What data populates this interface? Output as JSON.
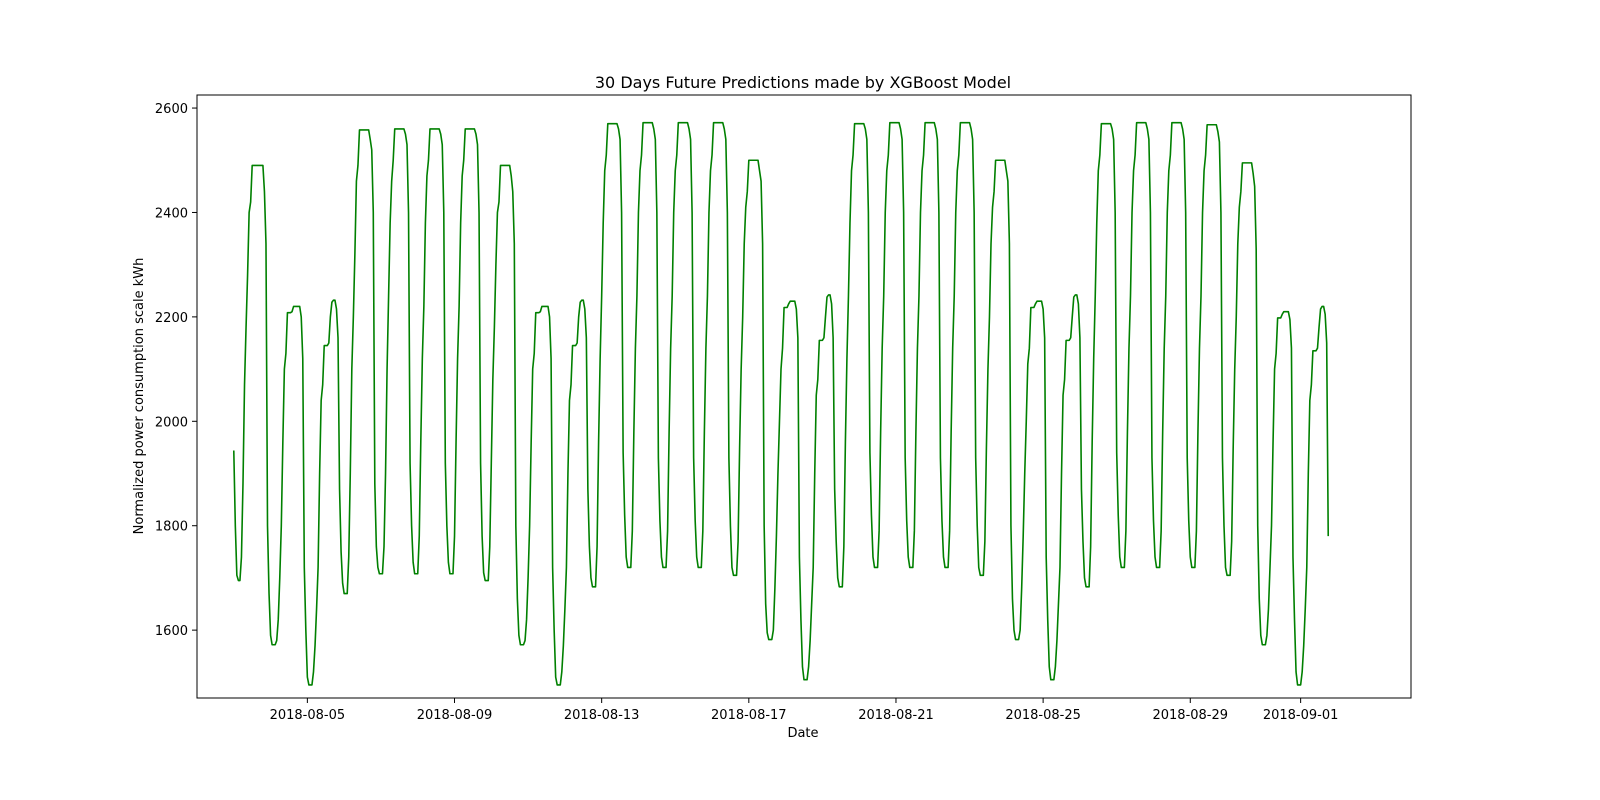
{
  "chart_data": {
    "type": "line",
    "title": "30 Days Future Predictions made by XGBoost Model",
    "xlabel": "Date",
    "ylabel": "Normalized power consumption scale kWh",
    "xlim": [
      "2018-08-02T00:00",
      "2018-09-04T00:00"
    ],
    "ylim": [
      1470,
      2625
    ],
    "x_ticks": [
      "2018-08-05",
      "2018-08-09",
      "2018-08-13",
      "2018-08-17",
      "2018-08-21",
      "2018-08-25",
      "2018-08-29",
      "2018-09-01"
    ],
    "y_ticks": [
      1600,
      1800,
      2000,
      2200,
      2400,
      2600
    ],
    "grid": false,
    "line_color": "#008000",
    "series": [
      {
        "start": "2018-08-03T00:00",
        "step_hours": 1,
        "values": [
          1944,
          1800,
          1705,
          1695,
          1695,
          1740,
          1880,
          2070,
          2180,
          2280,
          2400,
          2420,
          2490,
          2490,
          2490,
          2490,
          2490,
          2490,
          2490,
          2490,
          2440,
          2340,
          1800,
          1670,
          1590,
          1572,
          1572,
          1572,
          1580,
          1620,
          1700,
          1800,
          1960,
          2100,
          2130,
          2208,
          2208,
          2208,
          2210,
          2220,
          2220,
          2220,
          2220,
          2220,
          2200,
          2120,
          1720,
          1600,
          1510,
          1495,
          1495,
          1495,
          1520,
          1570,
          1640,
          1720,
          1900,
          2040,
          2070,
          2145,
          2145,
          2145,
          2150,
          2200,
          2228,
          2232,
          2232,
          2215,
          2160,
          1870,
          1750,
          1690,
          1670,
          1670,
          1670,
          1740,
          1900,
          2100,
          2200,
          2320,
          2460,
          2490,
          2558,
          2558,
          2558,
          2558,
          2558,
          2558,
          2558,
          2540,
          2520,
          2400,
          1880,
          1760,
          1720,
          1708,
          1708,
          1708,
          1760,
          1900,
          2100,
          2240,
          2380,
          2460,
          2500,
          2560,
          2560,
          2560,
          2560,
          2560,
          2560,
          2560,
          2550,
          2530,
          2400,
          1920,
          1800,
          1730,
          1708,
          1708,
          1708,
          1780,
          1960,
          2120,
          2220,
          2380,
          2470,
          2500,
          2560,
          2560,
          2560,
          2560,
          2560,
          2560,
          2560,
          2550,
          2530,
          2400,
          1920,
          1800,
          1730,
          1708,
          1708,
          1708,
          1780,
          1960,
          2120,
          2220,
          2380,
          2470,
          2500,
          2560,
          2560,
          2560,
          2560,
          2560,
          2560,
          2560,
          2550,
          2530,
          2400,
          1920,
          1780,
          1710,
          1695,
          1695,
          1695,
          1760,
          1920,
          2080,
          2180,
          2300,
          2400,
          2420,
          2490,
          2490,
          2490,
          2490,
          2490,
          2490,
          2490,
          2470,
          2440,
          2340,
          1800,
          1660,
          1590,
          1572,
          1572,
          1572,
          1580,
          1620,
          1700,
          1800,
          1960,
          2100,
          2130,
          2208,
          2208,
          2208,
          2210,
          2220,
          2220,
          2220,
          2220,
          2220,
          2200,
          2120,
          1720,
          1600,
          1510,
          1495,
          1495,
          1495,
          1520,
          1570,
          1640,
          1720,
          1900,
          2040,
          2070,
          2145,
          2145,
          2145,
          2150,
          2200,
          2228,
          2232,
          2232,
          2215,
          2160,
          1870,
          1760,
          1700,
          1683,
          1683,
          1683,
          1760,
          1960,
          2120,
          2240,
          2380,
          2480,
          2510,
          2570,
          2570,
          2570,
          2570,
          2570,
          2570,
          2570,
          2560,
          2540,
          2400,
          1940,
          1820,
          1740,
          1720,
          1720,
          1720,
          1790,
          1980,
          2140,
          2240,
          2400,
          2480,
          2510,
          2572,
          2572,
          2572,
          2572,
          2572,
          2572,
          2572,
          2560,
          2540,
          2400,
          1930,
          1810,
          1740,
          1720,
          1720,
          1720,
          1790,
          1980,
          2140,
          2240,
          2400,
          2480,
          2510,
          2572,
          2572,
          2572,
          2572,
          2572,
          2572,
          2572,
          2560,
          2540,
          2400,
          1930,
          1810,
          1740,
          1720,
          1720,
          1720,
          1790,
          1980,
          2140,
          2240,
          2400,
          2480,
          2510,
          2572,
          2572,
          2572,
          2572,
          2572,
          2572,
          2572,
          2560,
          2540,
          2400,
          1930,
          1800,
          1720,
          1705,
          1705,
          1705,
          1770,
          1950,
          2100,
          2200,
          2340,
          2410,
          2440,
          2500,
          2500,
          2500,
          2500,
          2500,
          2500,
          2500,
          2480,
          2460,
          2340,
          1800,
          1650,
          1595,
          1582,
          1582,
          1582,
          1600,
          1680,
          1780,
          1900,
          2000,
          2100,
          2140,
          2218,
          2218,
          2218,
          2225,
          2230,
          2230,
          2230,
          2230,
          2215,
          2160,
          1740,
          1620,
          1530,
          1505,
          1505,
          1505,
          1530,
          1580,
          1650,
          1720,
          1900,
          2050,
          2080,
          2155,
          2155,
          2155,
          2160,
          2200,
          2238,
          2242,
          2242,
          2225,
          2160,
          1870,
          1770,
          1700,
          1683,
          1683,
          1683,
          1760,
          1960,
          2120,
          2240,
          2380,
          2480,
          2510,
          2570,
          2570,
          2570,
          2570,
          2570,
          2570,
          2570,
          2560,
          2540,
          2400,
          1940,
          1820,
          1740,
          1720,
          1720,
          1720,
          1790,
          1980,
          2140,
          2240,
          2400,
          2480,
          2510,
          2572,
          2572,
          2572,
          2572,
          2572,
          2572,
          2572,
          2560,
          2540,
          2400,
          1930,
          1810,
          1740,
          1720,
          1720,
          1720,
          1790,
          1980,
          2140,
          2240,
          2400,
          2480,
          2510,
          2572,
          2572,
          2572,
          2572,
          2572,
          2572,
          2572,
          2560,
          2540,
          2400,
          1930,
          1810,
          1740,
          1720,
          1720,
          1720,
          1790,
          1980,
          2140,
          2240,
          2400,
          2480,
          2510,
          2572,
          2572,
          2572,
          2572,
          2572,
          2572,
          2572,
          2560,
          2540,
          2400,
          1930,
          1800,
          1720,
          1705,
          1705,
          1705,
          1770,
          1950,
          2100,
          2200,
          2340,
          2410,
          2440,
          2500,
          2500,
          2500,
          2500,
          2500,
          2500,
          2500,
          2480,
          2460,
          2340,
          1800,
          1660,
          1600,
          1582,
          1582,
          1582,
          1600,
          1680,
          1780,
          1900,
          2000,
          2110,
          2140,
          2218,
          2218,
          2218,
          2225,
          2230,
          2230,
          2230,
          2230,
          2215,
          2160,
          1740,
          1620,
          1530,
          1505,
          1505,
          1505,
          1530,
          1580,
          1650,
          1720,
          1900,
          2050,
          2080,
          2155,
          2155,
          2155,
          2160,
          2200,
          2238,
          2242,
          2242,
          2225,
          2160,
          1870,
          1770,
          1700,
          1683,
          1683,
          1683,
          1760,
          1960,
          2120,
          2240,
          2380,
          2480,
          2510,
          2570,
          2570,
          2570,
          2570,
          2570,
          2570,
          2570,
          2560,
          2540,
          2400,
          1940,
          1820,
          1740,
          1720,
          1720,
          1720,
          1790,
          1980,
          2140,
          2240,
          2400,
          2480,
          2510,
          2572,
          2572,
          2572,
          2572,
          2572,
          2572,
          2572,
          2560,
          2540,
          2400,
          1930,
          1810,
          1740,
          1720,
          1720,
          1720,
          1790,
          1980,
          2140,
          2240,
          2400,
          2480,
          2510,
          2572,
          2572,
          2572,
          2572,
          2572,
          2572,
          2572,
          2560,
          2540,
          2400,
          1930,
          1810,
          1740,
          1720,
          1720,
          1720,
          1790,
          1980,
          2140,
          2240,
          2400,
          2480,
          2510,
          2568,
          2568,
          2568,
          2568,
          2568,
          2568,
          2568,
          2555,
          2535,
          2400,
          1930,
          1800,
          1720,
          1705,
          1705,
          1705,
          1770,
          1950,
          2100,
          2200,
          2340,
          2410,
          2440,
          2495,
          2495,
          2495,
          2495,
          2495,
          2495,
          2495,
          2475,
          2450,
          2330,
          1800,
          1660,
          1590,
          1572,
          1572,
          1572,
          1590,
          1640,
          1720,
          1800,
          1960,
          2100,
          2130,
          2198,
          2198,
          2198,
          2205,
          2210,
          2210,
          2210,
          2210,
          2195,
          2140,
          1740,
          1620,
          1520,
          1495,
          1495,
          1495,
          1520,
          1570,
          1640,
          1720,
          1900,
          2040,
          2070,
          2135,
          2135,
          2135,
          2140,
          2180,
          2215,
          2220,
          2220,
          2205,
          2150,
          1780
        ]
      }
    ]
  }
}
